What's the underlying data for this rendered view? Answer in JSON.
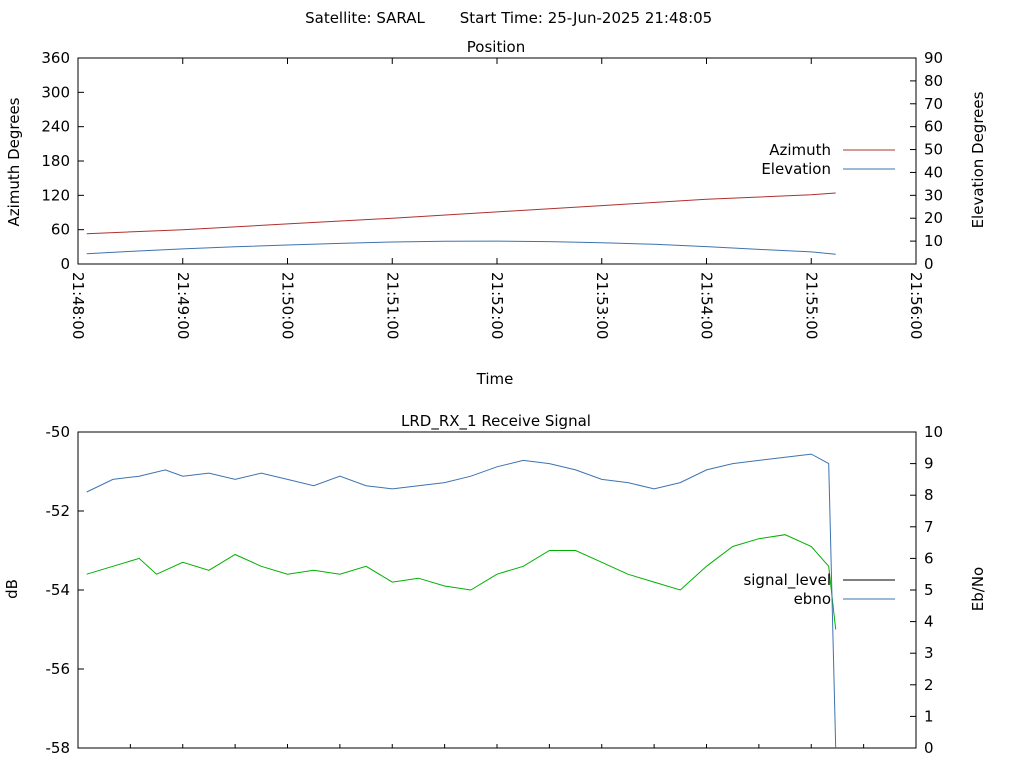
{
  "header": {
    "satellite": "Satellite: SARAL",
    "start_time": "Start Time: 25-Jun-2025 21:48:05"
  },
  "chart_data": [
    {
      "type": "line",
      "title": "Position",
      "xlabel": "Time",
      "ylabel": "Azimuth Degrees",
      "y2label": "Elevation Degrees",
      "x_ticks": [
        "21:48:00",
        "21:49:00",
        "21:50:00",
        "21:51:00",
        "21:52:00",
        "21:53:00",
        "21:54:00",
        "21:55:00",
        "21:56:00"
      ],
      "xlim": [
        "21:48:00",
        "21:56:00"
      ],
      "ylim": [
        0,
        360
      ],
      "y_ticks": [
        "0",
        "60",
        "120",
        "180",
        "240",
        "300",
        "360"
      ],
      "y2lim": [
        0,
        90
      ],
      "y2_ticks": [
        "0",
        "10",
        "20",
        "30",
        "40",
        "50",
        "60",
        "70",
        "80",
        "90"
      ],
      "grid": false,
      "legend": "right",
      "series": [
        {
          "name": "Azimuth",
          "axis": "y",
          "color": "#b03030",
          "points": [
            [
              "21:48:05",
              53
            ],
            [
              "21:49:00",
              60
            ],
            [
              "21:50:00",
              70
            ],
            [
              "21:51:00",
              80
            ],
            [
              "21:52:00",
              91
            ],
            [
              "21:53:00",
              102
            ],
            [
              "21:54:00",
              113
            ],
            [
              "21:55:00",
              121
            ],
            [
              "21:55:14",
              124
            ]
          ]
        },
        {
          "name": "Elevation",
          "axis": "y2",
          "color": "#3e73b0",
          "points": [
            [
              "21:48:05",
              4.5
            ],
            [
              "21:48:30",
              5.5
            ],
            [
              "21:49:00",
              6.6
            ],
            [
              "21:49:30",
              7.5
            ],
            [
              "21:50:00",
              8.3
            ],
            [
              "21:50:30",
              9.0
            ],
            [
              "21:51:00",
              9.6
            ],
            [
              "21:51:30",
              9.9
            ],
            [
              "21:52:00",
              10.0
            ],
            [
              "21:52:30",
              9.8
            ],
            [
              "21:53:00",
              9.3
            ],
            [
              "21:53:30",
              8.6
            ],
            [
              "21:54:00",
              7.6
            ],
            [
              "21:54:30",
              6.4
            ],
            [
              "21:55:00",
              5.3
            ],
            [
              "21:55:14",
              4.3
            ]
          ]
        }
      ]
    },
    {
      "type": "line",
      "title": "LRD_RX_1 Receive Signal",
      "xlabel": "",
      "ylabel": "dB",
      "y2label": "Eb/No",
      "xlim": [
        "21:48:00",
        "21:56:00"
      ],
      "ylim": [
        -58,
        -50
      ],
      "y_ticks": [
        "-58",
        "-56",
        "-54",
        "-52",
        "-50"
      ],
      "y2lim": [
        0,
        10
      ],
      "y2_ticks": [
        "0",
        "1",
        "2",
        "3",
        "4",
        "5",
        "6",
        "7",
        "8",
        "9",
        "10"
      ],
      "grid": false,
      "legend": "right",
      "series": [
        {
          "name": "signal_level",
          "axis": "y",
          "color": "#00b000",
          "points": [
            [
              "21:48:05",
              -53.6
            ],
            [
              "21:48:20",
              -53.4
            ],
            [
              "21:48:35",
              -53.2
            ],
            [
              "21:48:45",
              -53.6
            ],
            [
              "21:49:00",
              -53.3
            ],
            [
              "21:49:15",
              -53.5
            ],
            [
              "21:49:30",
              -53.1
            ],
            [
              "21:49:45",
              -53.4
            ],
            [
              "21:50:00",
              -53.6
            ],
            [
              "21:50:15",
              -53.5
            ],
            [
              "21:50:30",
              -53.6
            ],
            [
              "21:50:45",
              -53.4
            ],
            [
              "21:51:00",
              -53.8
            ],
            [
              "21:51:15",
              -53.7
            ],
            [
              "21:51:30",
              -53.9
            ],
            [
              "21:51:45",
              -54.0
            ],
            [
              "21:52:00",
              -53.6
            ],
            [
              "21:52:15",
              -53.4
            ],
            [
              "21:52:30",
              -53.0
            ],
            [
              "21:52:45",
              -53.0
            ],
            [
              "21:53:00",
              -53.3
            ],
            [
              "21:53:15",
              -53.6
            ],
            [
              "21:53:30",
              -53.8
            ],
            [
              "21:53:45",
              -54.0
            ],
            [
              "21:54:00",
              -53.4
            ],
            [
              "21:54:15",
              -52.9
            ],
            [
              "21:54:30",
              -52.7
            ],
            [
              "21:54:45",
              -52.6
            ],
            [
              "21:55:00",
              -52.9
            ],
            [
              "21:55:10",
              -53.4
            ],
            [
              "21:55:14",
              -55.0
            ]
          ]
        },
        {
          "name": "ebno",
          "axis": "y2",
          "color": "#3e73b0",
          "points": [
            [
              "21:48:05",
              8.1
            ],
            [
              "21:48:20",
              8.5
            ],
            [
              "21:48:35",
              8.6
            ],
            [
              "21:48:50",
              8.8
            ],
            [
              "21:49:00",
              8.6
            ],
            [
              "21:49:15",
              8.7
            ],
            [
              "21:49:30",
              8.5
            ],
            [
              "21:49:45",
              8.7
            ],
            [
              "21:50:00",
              8.5
            ],
            [
              "21:50:15",
              8.3
            ],
            [
              "21:50:30",
              8.6
            ],
            [
              "21:50:45",
              8.3
            ],
            [
              "21:51:00",
              8.2
            ],
            [
              "21:51:15",
              8.3
            ],
            [
              "21:51:30",
              8.4
            ],
            [
              "21:51:45",
              8.6
            ],
            [
              "21:52:00",
              8.9
            ],
            [
              "21:52:15",
              9.1
            ],
            [
              "21:52:30",
              9.0
            ],
            [
              "21:52:45",
              8.8
            ],
            [
              "21:53:00",
              8.5
            ],
            [
              "21:53:15",
              8.4
            ],
            [
              "21:53:30",
              8.2
            ],
            [
              "21:53:45",
              8.4
            ],
            [
              "21:54:00",
              8.8
            ],
            [
              "21:54:15",
              9.0
            ],
            [
              "21:54:30",
              9.1
            ],
            [
              "21:54:45",
              9.2
            ],
            [
              "21:55:00",
              9.3
            ],
            [
              "21:55:10",
              9.0
            ],
            [
              "21:55:14",
              0.0
            ]
          ]
        }
      ]
    }
  ]
}
